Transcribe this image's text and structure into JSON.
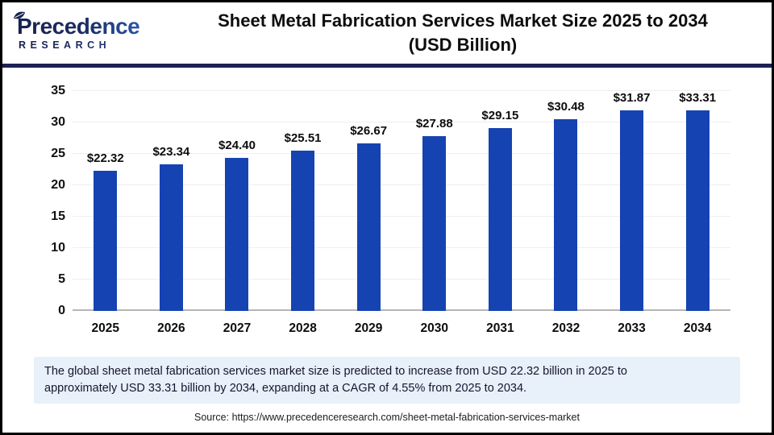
{
  "header": {
    "logo": {
      "brand": "Precedence",
      "subbrand": "RESEARCH"
    },
    "title_line1": "Sheet Metal Fabrication Services Market Size 2025 to 2034",
    "title_line2": "(USD Billion)"
  },
  "chart_data": {
    "type": "bar",
    "title": "Sheet Metal Fabrication Services Market Size 2025 to 2034 (USD Billion)",
    "categories": [
      "2025",
      "2026",
      "2027",
      "2028",
      "2029",
      "2030",
      "2031",
      "2032",
      "2033",
      "2034"
    ],
    "values": [
      22.32,
      23.34,
      24.4,
      25.51,
      26.67,
      27.88,
      29.15,
      30.48,
      31.87,
      33.31
    ],
    "value_labels": [
      "$22.32",
      "$23.34",
      "$24.40",
      "$25.51",
      "$26.67",
      "$27.88",
      "$29.15",
      "$30.48",
      "$31.87",
      "$33.31"
    ],
    "xlabel": "",
    "ylabel": "",
    "ylim": [
      0,
      35
    ],
    "yticks": [
      0,
      5,
      10,
      15,
      20,
      25,
      30,
      35
    ],
    "grid": true,
    "legend": "none",
    "bar_color": "#1643b2"
  },
  "footer": {
    "note_line1": "The global sheet metal fabrication services market size is predicted to increase from USD 22.32 billion in 2025 to",
    "note_line2": "approximately USD 33.31 billion by 2034, expanding at a CAGR of 4.55% from 2025 to 2034.",
    "source": "Source: https://www.precedenceresearch.com/sheet-metal-fabrication-services-market"
  },
  "colors": {
    "bar": "#1643b2",
    "divider_navy": "#1b2256",
    "note_background": "#e8f0f9",
    "gridline": "#eeeeee",
    "axis_baseline": "#b5b5b5",
    "frame_border": "#000000"
  }
}
